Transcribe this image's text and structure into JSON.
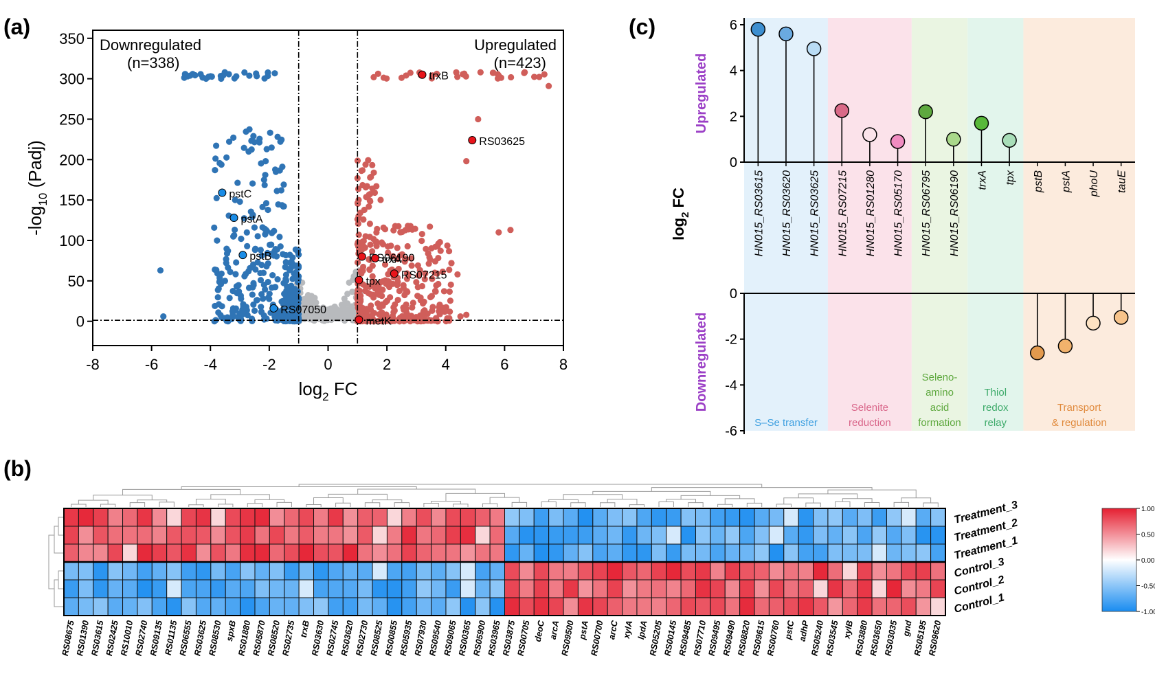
{
  "chart_data": [
    {
      "panel": "(a)",
      "type": "scatter",
      "xlabel_main": "log",
      "xlabel_sub": "2",
      "xlabel_tail": " FC",
      "ylabel_pre": "-log",
      "ylabel_sub": "10",
      "ylabel_tail": " (Padj)",
      "xlim": [
        -8,
        8
      ],
      "ylim": [
        -30,
        360
      ],
      "xticks": [
        "-8",
        "-6",
        "-4",
        "-2",
        "0",
        "2",
        "4",
        "6",
        "8"
      ],
      "yticks": [
        "0",
        "50",
        "100",
        "150",
        "200",
        "250",
        "300",
        "350"
      ],
      "thresholds_x": [
        -1,
        1
      ],
      "threshold_y": 1.3,
      "annotations": {
        "down_title": "Downregulated",
        "down_count": "(n=338)",
        "up_title": "Upregulated",
        "up_count": "(n=423)"
      },
      "colors": {
        "down": "#2f74b5",
        "up": "#d05e5a",
        "ns": "#b8babd",
        "hl_up": "#e8141b",
        "hl_down": "#1a8ce6"
      },
      "highlighted": [
        {
          "label": "trxB",
          "x": 3.2,
          "y": 305,
          "dir": "up"
        },
        {
          "label": "RS03625",
          "x": 4.9,
          "y": 224,
          "dir": "up"
        },
        {
          "label": "RS06190",
          "x": 1.15,
          "y": 80,
          "dir": "up"
        },
        {
          "label": "trxA",
          "x": 1.6,
          "y": 78,
          "dir": "up"
        },
        {
          "label": "RS07215",
          "x": 2.25,
          "y": 59,
          "dir": "up"
        },
        {
          "label": "tpx",
          "x": 1.05,
          "y": 51,
          "dir": "up"
        },
        {
          "label": "metK",
          "x": 1.05,
          "y": 2,
          "dir": "up"
        },
        {
          "label": "pstC",
          "x": -3.6,
          "y": 159,
          "dir": "down"
        },
        {
          "label": "pstA",
          "x": -3.2,
          "y": 128,
          "dir": "down"
        },
        {
          "label": "pstB",
          "x": -2.9,
          "y": 82,
          "dir": "down"
        },
        {
          "label": "RS07050",
          "x": -1.85,
          "y": 16,
          "dir": "down"
        }
      ]
    },
    {
      "panel": "(b)",
      "type": "heatmap",
      "rows": [
        "Treatment_3",
        "Treatment_2",
        "Treatment_1",
        "Control_3",
        "Control_2",
        "Control_1"
      ],
      "columns": [
        "RS08675",
        "RS01390",
        "RS03615",
        "RS02425",
        "RS10010",
        "RS02740",
        "RS09135",
        "RS01135",
        "RS06555",
        "RS03625",
        "RS08530",
        "spxB",
        "RS01880",
        "RS05870",
        "RS08520",
        "RS02735",
        "trxB",
        "RS03630",
        "RS02745",
        "RS03620",
        "RS02730",
        "RS08525",
        "RS00855",
        "RS05935",
        "RS07930",
        "RS09540",
        "RS09065",
        "RS00365",
        "RS05900",
        "RS03965",
        "RS03875",
        "RS00705",
        "deoC",
        "arcA",
        "RS09500",
        "pstA",
        "RS00700",
        "arcC",
        "xylA",
        "lpdA",
        "RS05205",
        "RS00145",
        "RS09485",
        "RS07710",
        "RS09495",
        "RS09490",
        "RS08820",
        "RS09615",
        "RS00760",
        "pstC",
        "adhP",
        "RS05240",
        "RS03545",
        "xylB",
        "RS03880",
        "RS03650",
        "RS03035",
        "gnd",
        "RS05195",
        "RS09620"
      ],
      "colorbar_ticks": [
        "1.00",
        "0.50",
        "0.00",
        "-0.50",
        "-1.00"
      ],
      "color_range": [
        -1,
        1
      ]
    },
    {
      "panel": "(c)",
      "type": "lollipop",
      "ylabel_main": "log",
      "ylabel_sub": "2",
      "ylabel_tail": " FC",
      "up_label": "Upregulated",
      "down_label": "Downregulated",
      "yticks_up": [
        "6",
        "4",
        "2",
        "0"
      ],
      "yticks_down": [
        "0",
        "-2",
        "-4",
        "-6"
      ],
      "genes": [
        {
          "name": "HN015_RS03615",
          "value": 5.8,
          "color": "#3d8fd0"
        },
        {
          "name": "HN015_RS03620",
          "value": 5.6,
          "color": "#6aaae0"
        },
        {
          "name": "HN015_RS03625",
          "value": 4.95,
          "color": "#b9dcf5"
        },
        {
          "name": "HN015_RS07215",
          "value": 2.25,
          "color": "#d96a88"
        },
        {
          "name": "HN015_RS01280",
          "value": 1.2,
          "color": "#fbe3ea"
        },
        {
          "name": "HN015_RS05170",
          "value": 0.9,
          "color": "#f08cc1"
        },
        {
          "name": "HN015_RS06795",
          "value": 2.2,
          "color": "#5ea93f"
        },
        {
          "name": "HN015_RS06190",
          "value": 1.0,
          "color": "#a9d88a"
        },
        {
          "name": "trxA",
          "value": 1.7,
          "color": "#58b83a"
        },
        {
          "name": "tpx",
          "value": 0.95,
          "color": "#a8ddb8"
        },
        {
          "name": "pstB",
          "value": -2.6,
          "color": "#e39a4e"
        },
        {
          "name": "pstA",
          "value": -2.3,
          "color": "#f2b26c"
        },
        {
          "name": "phoU",
          "value": -1.3,
          "color": "#fde2c2"
        },
        {
          "name": "tauE",
          "value": -1.05,
          "color": "#f7c38a"
        }
      ],
      "groups": [
        {
          "label": "S–Se transfer",
          "span": [
            0,
            2
          ],
          "bg": "#e3f1fb",
          "color": "#3fa0e0"
        },
        {
          "label": "Selenite\nreduction",
          "span": [
            3,
            5
          ],
          "bg": "#fbe2ea",
          "color": "#d9668a"
        },
        {
          "label": "Seleno-\namino\nacid\nformation",
          "span": [
            6,
            7
          ],
          "bg": "#eaf5e2",
          "color": "#5ea83e"
        },
        {
          "label": "Thiol\nredox\nrelay",
          "span": [
            8,
            9
          ],
          "bg": "#e2f5ec",
          "color": "#3daa6a"
        },
        {
          "label": "Transport\n& regulation",
          "span": [
            10,
            13
          ],
          "bg": "#fcebdd",
          "color": "#e08a3d"
        }
      ]
    }
  ]
}
